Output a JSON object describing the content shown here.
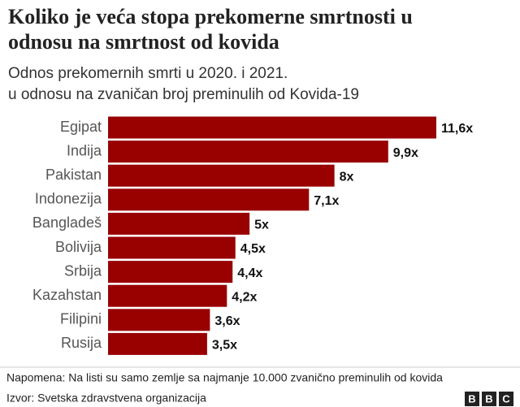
{
  "chart_data": {
    "type": "bar",
    "orientation": "horizontal",
    "title": [
      "Koliko je veća stopa prekomerne smrtnosti u",
      "odnosu na smrtnost od kovida"
    ],
    "subtitle": [
      "Odnos prekomernih smrti u 2020. i 2021.",
      "u odnosu na zvaničan broj preminulih od Kovida-19"
    ],
    "categories": [
      "Egipat",
      "Indija",
      "Pakistan",
      "Indonezija",
      "Bangladeš",
      "Bolivija",
      "Srbija",
      "Kazahstan",
      "Filipini",
      "Rusija"
    ],
    "values": [
      11.6,
      9.9,
      8,
      7.1,
      5,
      4.5,
      4.4,
      4.2,
      3.6,
      3.5
    ],
    "value_labels": [
      "11,6x",
      "9,9x",
      "8x",
      "7,1x",
      "5x",
      "4,5x",
      "4,4x",
      "4,2x",
      "3,6x",
      "3,5x"
    ],
    "color": "#990000",
    "note": "Napomena: Na listi su samo zemlje sa najmanje 10.000 zvanično preminulih od kovida",
    "source": "Izvor: Svetska zdravstvena organizacija",
    "logo": [
      "B",
      "B",
      "C"
    ]
  }
}
